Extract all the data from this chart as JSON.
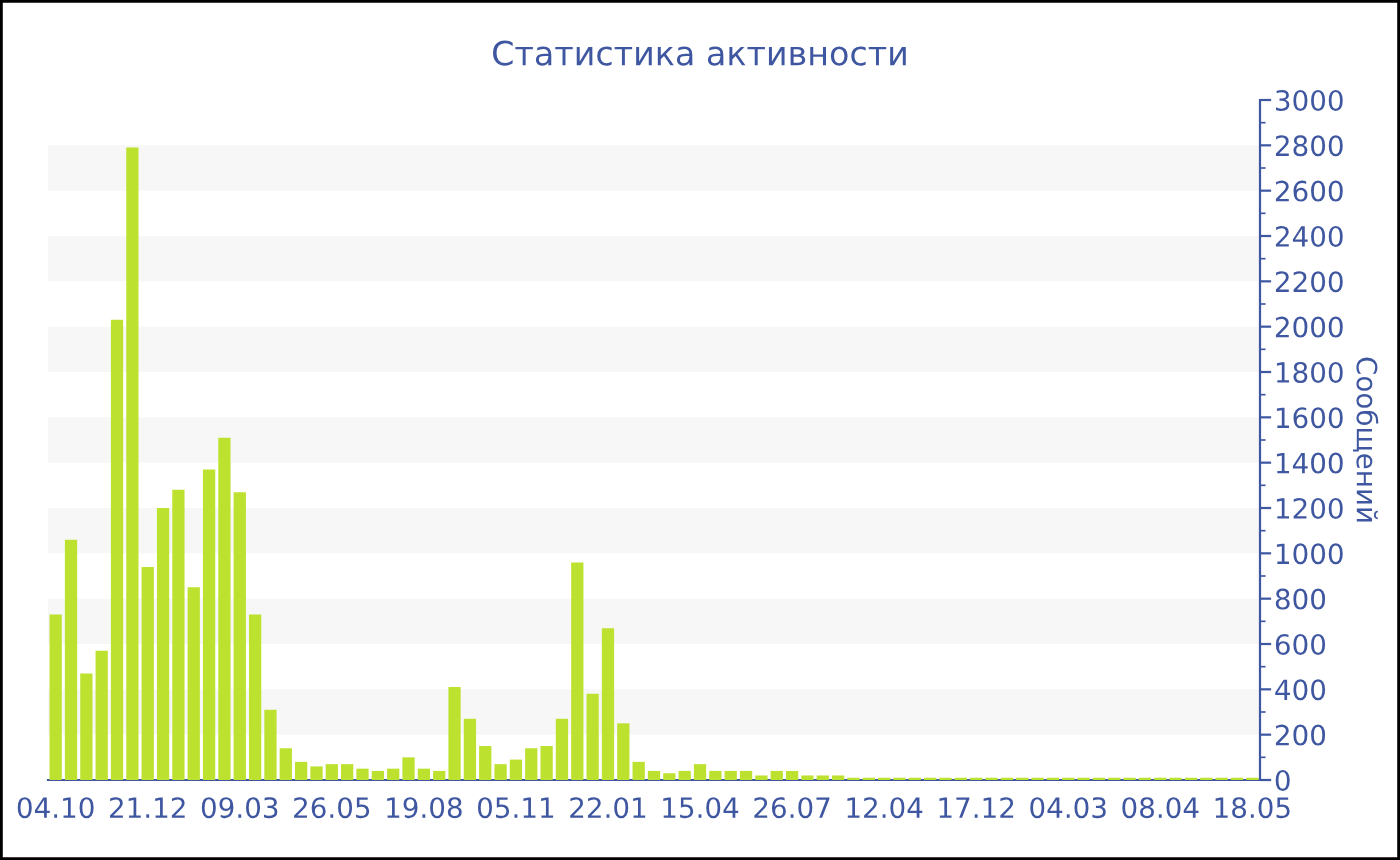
{
  "chart_data": {
    "type": "bar",
    "title": "Статистика активности",
    "ylabel": "Сообщений",
    "categories": [
      "04.10",
      null,
      null,
      null,
      null,
      null,
      "21.12",
      null,
      null,
      null,
      null,
      null,
      "09.03",
      null,
      null,
      null,
      null,
      null,
      "26.05",
      null,
      null,
      null,
      null,
      null,
      "19.08",
      null,
      null,
      null,
      null,
      null,
      "05.11",
      null,
      null,
      null,
      null,
      null,
      "22.01",
      null,
      null,
      null,
      null,
      null,
      "15.04",
      null,
      null,
      null,
      null,
      null,
      "26.07",
      null,
      null,
      null,
      null,
      null,
      "12.04",
      null,
      null,
      null,
      null,
      null,
      "17.12",
      null,
      null,
      null,
      null,
      null,
      "04.03",
      null,
      null,
      null,
      null,
      null,
      "08.04",
      null,
      null,
      null,
      null,
      null,
      "18.05"
    ],
    "series": [
      {
        "color": "#bde12f",
        "values": [
          730,
          1060,
          470,
          570,
          2030,
          2790,
          940,
          1200,
          1280,
          850,
          1370,
          1510,
          1270,
          730,
          310,
          140,
          80,
          60,
          70,
          70,
          50,
          40,
          50,
          100,
          50,
          40,
          410,
          270,
          150,
          70,
          90,
          140,
          150,
          270,
          960,
          380,
          670,
          250,
          80,
          40,
          30,
          40,
          70,
          40,
          40,
          40,
          20,
          40,
          40,
          20,
          20,
          20,
          10,
          10,
          10,
          10,
          10,
          10,
          10,
          10,
          10,
          10,
          10,
          10,
          10,
          10,
          10,
          10,
          10,
          10,
          10,
          10,
          10,
          10,
          10,
          10,
          10,
          10,
          10
        ]
      }
    ],
    "ylim": [
      0,
      3000
    ],
    "yticks": [
      0,
      200,
      400,
      600,
      800,
      1000,
      1200,
      1400,
      1600,
      1800,
      2000,
      2200,
      2400,
      2600,
      2800,
      3000
    ],
    "bands": [
      {
        "axis": "y",
        "from": 200,
        "to": 400,
        "color": "#f7f7f7"
      },
      {
        "axis": "y",
        "from": 600,
        "to": 800,
        "color": "#f7f7f7"
      },
      {
        "axis": "y",
        "from": 1000,
        "to": 1200,
        "color": "#f7f7f7"
      },
      {
        "axis": "y",
        "from": 1400,
        "to": 1600,
        "color": "#f7f7f7"
      },
      {
        "axis": "y",
        "from": 1800,
        "to": 2000,
        "color": "#f7f7f7"
      },
      {
        "axis": "y",
        "from": 2200,
        "to": 2400,
        "color": "#f7f7f7"
      },
      {
        "axis": "y",
        "from": 2600,
        "to": 2800,
        "color": "#f7f7f7"
      }
    ],
    "grid": false,
    "legend": false
  }
}
